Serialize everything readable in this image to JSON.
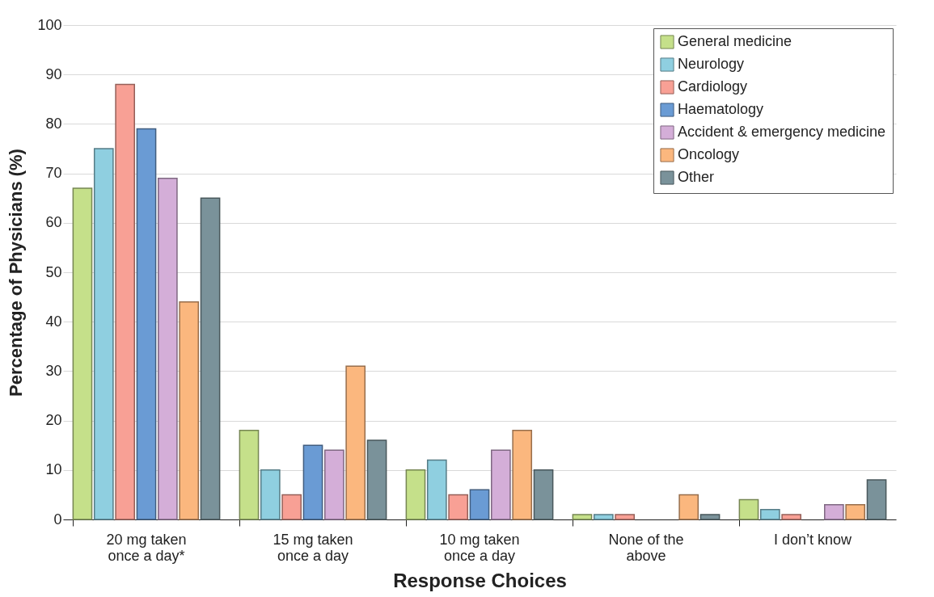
{
  "chart_data": {
    "type": "bar",
    "xlabel": "Response Choices",
    "ylabel": "Percentage of Physicians (%)",
    "categories": [
      "20 mg taken once a day*",
      "15 mg taken once a day",
      "10 mg taken once a day",
      "None of the above",
      "I don’t know"
    ],
    "series": [
      {
        "name": "General medicine",
        "color": "#c5e08a",
        "values": [
          67,
          18,
          10,
          1,
          4
        ]
      },
      {
        "name": "Neurology",
        "color": "#8fcfe0",
        "values": [
          75,
          10,
          12,
          1,
          2
        ]
      },
      {
        "name": "Cardiology",
        "color": "#f8a095",
        "values": [
          88,
          5,
          5,
          1,
          1
        ]
      },
      {
        "name": "Haematology",
        "color": "#6a9bd4",
        "values": [
          79,
          15,
          6,
          null,
          null
        ]
      },
      {
        "name": "Accident & emergency medicine",
        "color": "#d4aed8",
        "values": [
          69,
          14,
          14,
          null,
          3
        ]
      },
      {
        "name": "Oncology",
        "color": "#fbb77e",
        "values": [
          44,
          31,
          18,
          5,
          3
        ]
      },
      {
        "name": "Other",
        "color": "#7a929a",
        "values": [
          65,
          16,
          10,
          1,
          8
        ]
      }
    ],
    "ylim": [
      0,
      100
    ],
    "yticks": [
      0,
      10,
      20,
      30,
      40,
      50,
      60,
      70,
      80,
      90,
      100
    ],
    "grid": "y",
    "legend": "top right"
  }
}
